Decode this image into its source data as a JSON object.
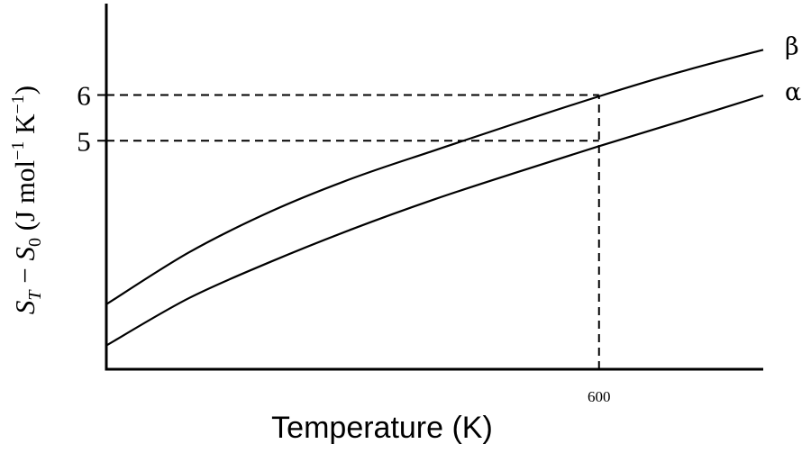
{
  "chart_data": {
    "type": "line",
    "xlabel": "Temperature (K)",
    "ylabel": "S_T − S_0 (J mol⁻¹ K⁻¹)",
    "xlim": [
      0,
      800
    ],
    "ylim": [
      0,
      8
    ],
    "x_ticks": [
      600
    ],
    "y_ticks": [
      5,
      6
    ],
    "grid": false,
    "series": [
      {
        "name": "β",
        "x": [
          0,
          100,
          200,
          300,
          400,
          500,
          600,
          700,
          800
        ],
        "y": [
          1.42,
          2.55,
          3.45,
          4.18,
          4.79,
          5.39,
          5.97,
          6.51,
          6.99
        ]
      },
      {
        "name": "α",
        "x": [
          0,
          100,
          200,
          300,
          400,
          500,
          600,
          700,
          800
        ],
        "y": [
          0.52,
          1.55,
          2.35,
          3.07,
          3.72,
          4.31,
          4.88,
          5.43,
          5.99
        ]
      }
    ],
    "guide_lines": [
      {
        "orientation": "horizontal",
        "y": 6,
        "x_end": 600
      },
      {
        "orientation": "horizontal",
        "y": 5,
        "x_end": 600
      },
      {
        "orientation": "vertical",
        "x": 600,
        "y_end": 6
      }
    ]
  }
}
